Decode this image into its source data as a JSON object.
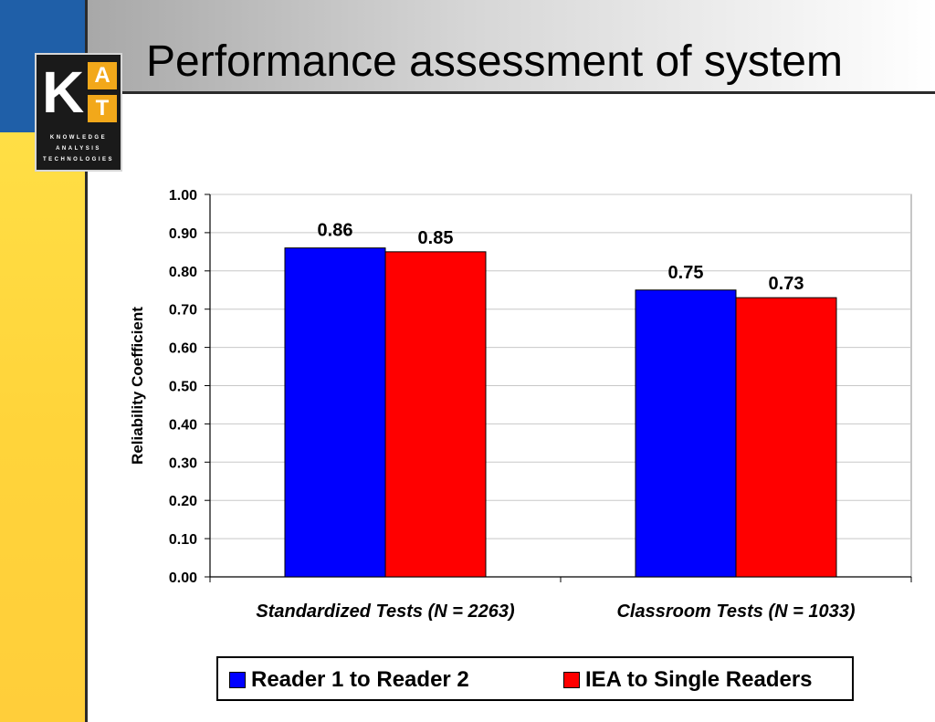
{
  "slide": {
    "title": "Performance assessment of system"
  },
  "logo": {
    "letters": [
      "K",
      "A",
      "T"
    ],
    "lines": [
      "KNOWLEDGE",
      "ANALYSIS",
      "TECHNOLOGIES"
    ]
  },
  "colors": {
    "series1": "#0000ff",
    "series2": "#ff0000",
    "accent_blue": "#1f5fa8",
    "accent_yellow": "#ffd43a"
  },
  "chart_data": {
    "type": "bar",
    "categories": [
      "Standardized Tests (N = 2263)",
      "Classroom Tests (N = 1033)"
    ],
    "series": [
      {
        "name": "Reader 1 to Reader 2",
        "values": [
          0.86,
          0.75
        ],
        "labels": [
          "0.86",
          "0.75"
        ]
      },
      {
        "name": "IEA to Single Readers",
        "values": [
          0.85,
          0.73
        ],
        "labels": [
          "0.85",
          "0.73"
        ]
      }
    ],
    "ylabel": "Reliability Coefficient",
    "ylim": [
      0,
      1.0
    ],
    "yticks": [
      "0.00",
      "0.10",
      "0.20",
      "0.30",
      "0.40",
      "0.50",
      "0.60",
      "0.70",
      "0.80",
      "0.90",
      "1.00"
    ],
    "grid": true,
    "legend_position": "bottom"
  }
}
